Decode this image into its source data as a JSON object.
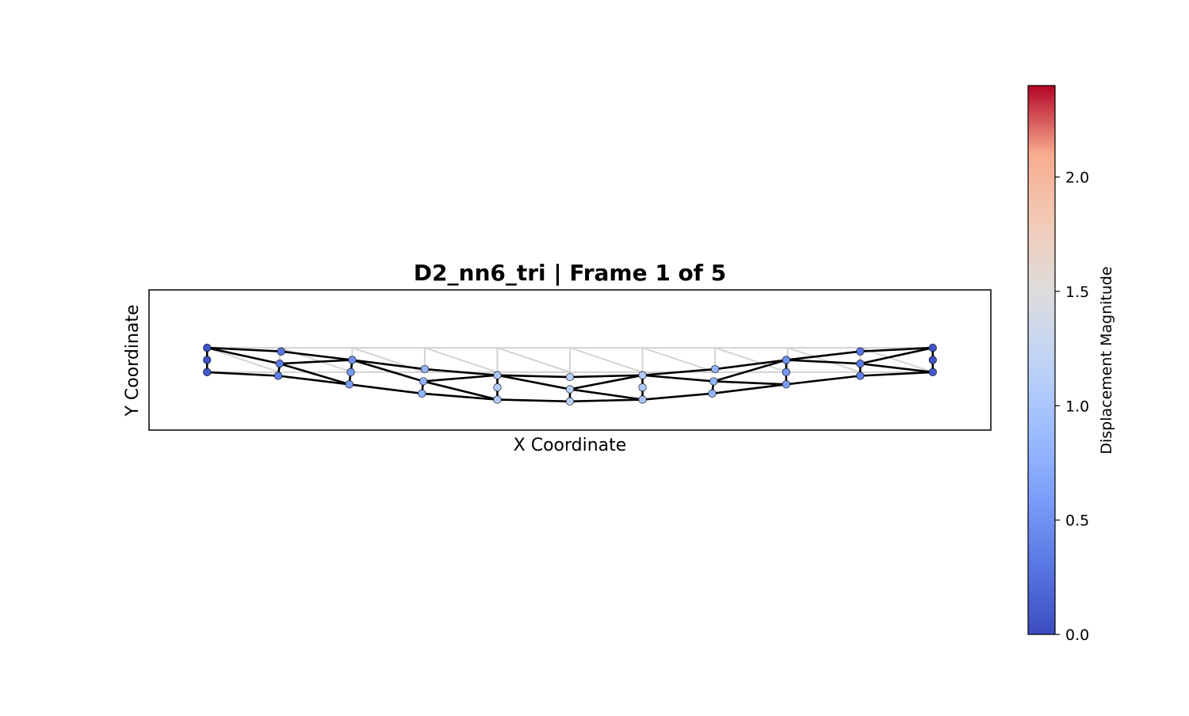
{
  "chart_data": {
    "type": "scatter",
    "title": "D2_nn6_tri  |  Frame 1 of 5",
    "xlabel": "X Coordinate",
    "ylabel": "Y Coordinate",
    "xlim": [
      -0.8,
      10.8
    ],
    "ylim": [
      -1.15,
      1.15
    ],
    "colorbar": {
      "label": "Displacement Magnitude",
      "range": [
        0.0,
        2.4
      ],
      "ticks": [
        "0.0",
        "0.5",
        "1.0",
        "1.5",
        "2.0"
      ],
      "tick_values": [
        0.0,
        0.5,
        1.0,
        1.5,
        2.0
      ],
      "colormap": "coolwarm"
    },
    "undeformed_mesh": {
      "color": "#d3d3d3",
      "nodes": [
        [
          0,
          0.2
        ],
        [
          0,
          -0.2
        ],
        [
          1,
          0.2
        ],
        [
          1,
          -0.2
        ],
        [
          2,
          0.2
        ],
        [
          2,
          -0.2
        ],
        [
          3,
          0.2
        ],
        [
          3,
          -0.2
        ],
        [
          4,
          0.2
        ],
        [
          4,
          -0.2
        ],
        [
          5,
          0.2
        ],
        [
          5,
          -0.2
        ],
        [
          6,
          0.2
        ],
        [
          6,
          -0.2
        ],
        [
          7,
          0.2
        ],
        [
          7,
          -0.2
        ],
        [
          8,
          0.2
        ],
        [
          8,
          -0.2
        ],
        [
          9,
          0.2
        ],
        [
          9,
          -0.2
        ],
        [
          10,
          0.2
        ],
        [
          10,
          -0.2
        ]
      ]
    },
    "deformed_mesh": {
      "color": "#000000",
      "nodes": [
        {
          "x": 0.0,
          "y": 0.2,
          "d": 0.06
        },
        {
          "x": 0.0,
          "y": 0.0,
          "d": 0.06
        },
        {
          "x": 0.0,
          "y": -0.2,
          "d": 0.1
        },
        {
          "x": 1.02,
          "y": 0.14,
          "d": 0.3
        },
        {
          "x": 1.0,
          "y": -0.06,
          "d": 0.32
        },
        {
          "x": 0.98,
          "y": -0.26,
          "d": 0.35
        },
        {
          "x": 2.0,
          "y": 0.0,
          "d": 0.5
        },
        {
          "x": 1.98,
          "y": -0.2,
          "d": 0.55
        },
        {
          "x": 1.96,
          "y": -0.4,
          "d": 0.58
        },
        {
          "x": 3.0,
          "y": -0.15,
          "d": 0.8
        },
        {
          "x": 2.98,
          "y": -0.35,
          "d": 0.8
        },
        {
          "x": 2.96,
          "y": -0.55,
          "d": 0.8
        },
        {
          "x": 4.0,
          "y": -0.25,
          "d": 1.0
        },
        {
          "x": 4.0,
          "y": -0.45,
          "d": 1.05
        },
        {
          "x": 4.0,
          "y": -0.65,
          "d": 1.05
        },
        {
          "x": 5.0,
          "y": -0.28,
          "d": 1.15
        },
        {
          "x": 5.0,
          "y": -0.48,
          "d": 1.15
        },
        {
          "x": 5.0,
          "y": -0.68,
          "d": 1.15
        },
        {
          "x": 6.0,
          "y": -0.25,
          "d": 1.05
        },
        {
          "x": 6.0,
          "y": -0.45,
          "d": 1.05
        },
        {
          "x": 6.0,
          "y": -0.65,
          "d": 1.0
        },
        {
          "x": 7.0,
          "y": -0.15,
          "d": 0.8
        },
        {
          "x": 6.98,
          "y": -0.35,
          "d": 0.8
        },
        {
          "x": 6.96,
          "y": -0.55,
          "d": 0.8
        },
        {
          "x": 7.98,
          "y": 0.0,
          "d": 0.5
        },
        {
          "x": 7.98,
          "y": -0.2,
          "d": 0.55
        },
        {
          "x": 7.98,
          "y": -0.4,
          "d": 0.58
        },
        {
          "x": 9.0,
          "y": 0.14,
          "d": 0.3
        },
        {
          "x": 9.0,
          "y": -0.06,
          "d": 0.32
        },
        {
          "x": 9.0,
          "y": -0.26,
          "d": 0.35
        },
        {
          "x": 10.0,
          "y": 0.2,
          "d": 0.06
        },
        {
          "x": 10.0,
          "y": 0.0,
          "d": 0.06
        },
        {
          "x": 10.0,
          "y": -0.2,
          "d": 0.1
        }
      ]
    }
  }
}
